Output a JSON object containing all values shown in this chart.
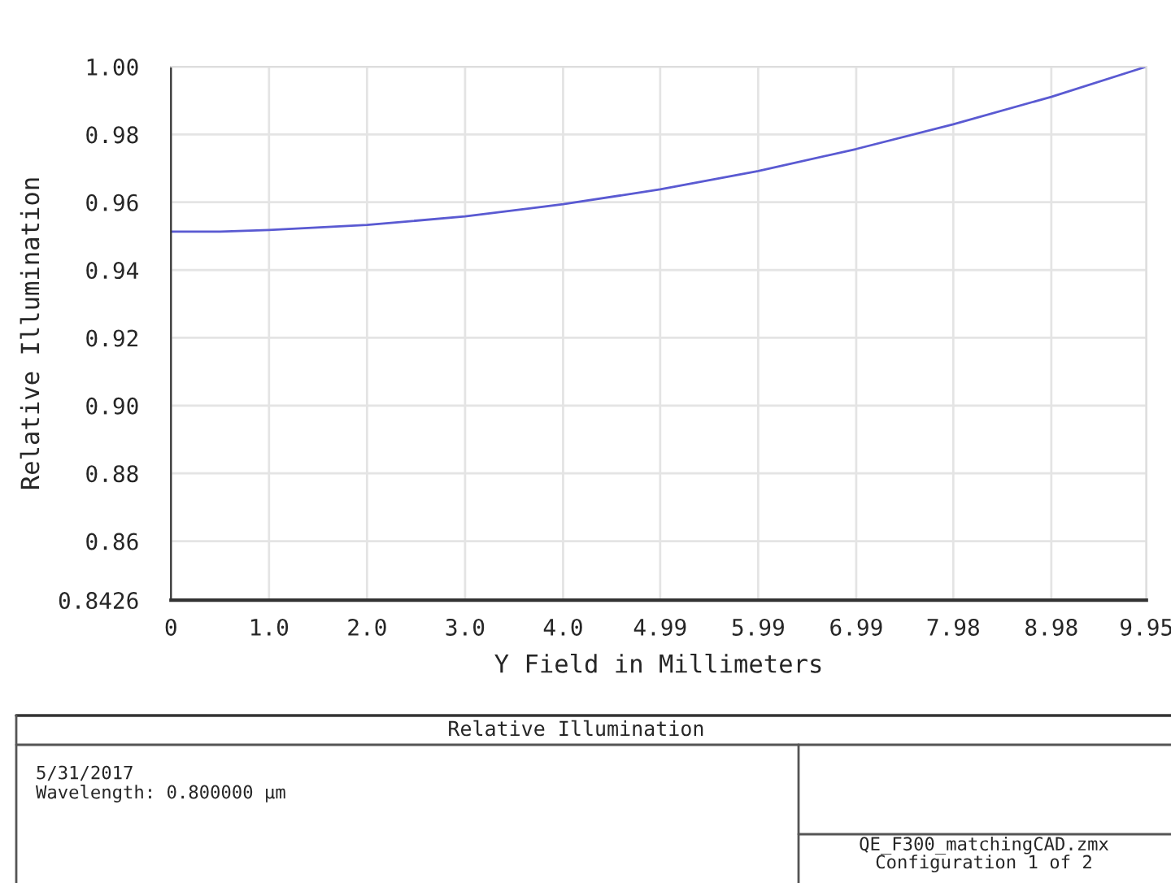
{
  "chart_data": {
    "type": "line",
    "title": "Relative Illumination",
    "xlabel": "Y Field in Millimeters",
    "ylabel": "Relative Illumination",
    "x": [
      0,
      0.5,
      1.0,
      2.0,
      3.0,
      4.0,
      4.99,
      5.99,
      6.99,
      7.98,
      8.98,
      9.95
    ],
    "series": [
      {
        "color": "#5a5ad2",
        "values": [
          0.9513,
          0.9513,
          0.9518,
          0.9533,
          0.9558,
          0.9594,
          0.9638,
          0.9692,
          0.9757,
          0.983,
          0.9911,
          1.0
        ]
      }
    ],
    "xlim": [
      0,
      9.95
    ],
    "xticks": [
      0,
      {
        "value": 1.0,
        "label": "1.0"
      },
      {
        "value": 2.0,
        "label": "2.0"
      },
      {
        "value": 3.0,
        "label": "3.0"
      },
      {
        "value": 4.0,
        "label": "4.0"
      },
      4.99,
      5.99,
      6.99,
      7.98,
      8.98,
      9.95
    ],
    "ylim": [
      0.8426,
      1.0
    ],
    "yticks": [
      0.8426,
      {
        "value": 0.86,
        "label": "0.86"
      },
      {
        "value": 0.88,
        "label": "0.88"
      },
      {
        "value": 0.9,
        "label": "0.90"
      },
      {
        "value": 0.92,
        "label": "0.92"
      },
      {
        "value": 0.94,
        "label": "0.94"
      },
      {
        "value": 0.96,
        "label": "0.96"
      },
      {
        "value": 0.98,
        "label": "0.98"
      },
      {
        "value": 1.0,
        "label": "1.00"
      }
    ],
    "grid": true,
    "annotations": [
      "5/31/2017",
      "Wavelength: 0.800000 µm",
      "QE_F300_matchingCAD.zmx",
      "Configuration 1 of 2"
    ]
  }
}
